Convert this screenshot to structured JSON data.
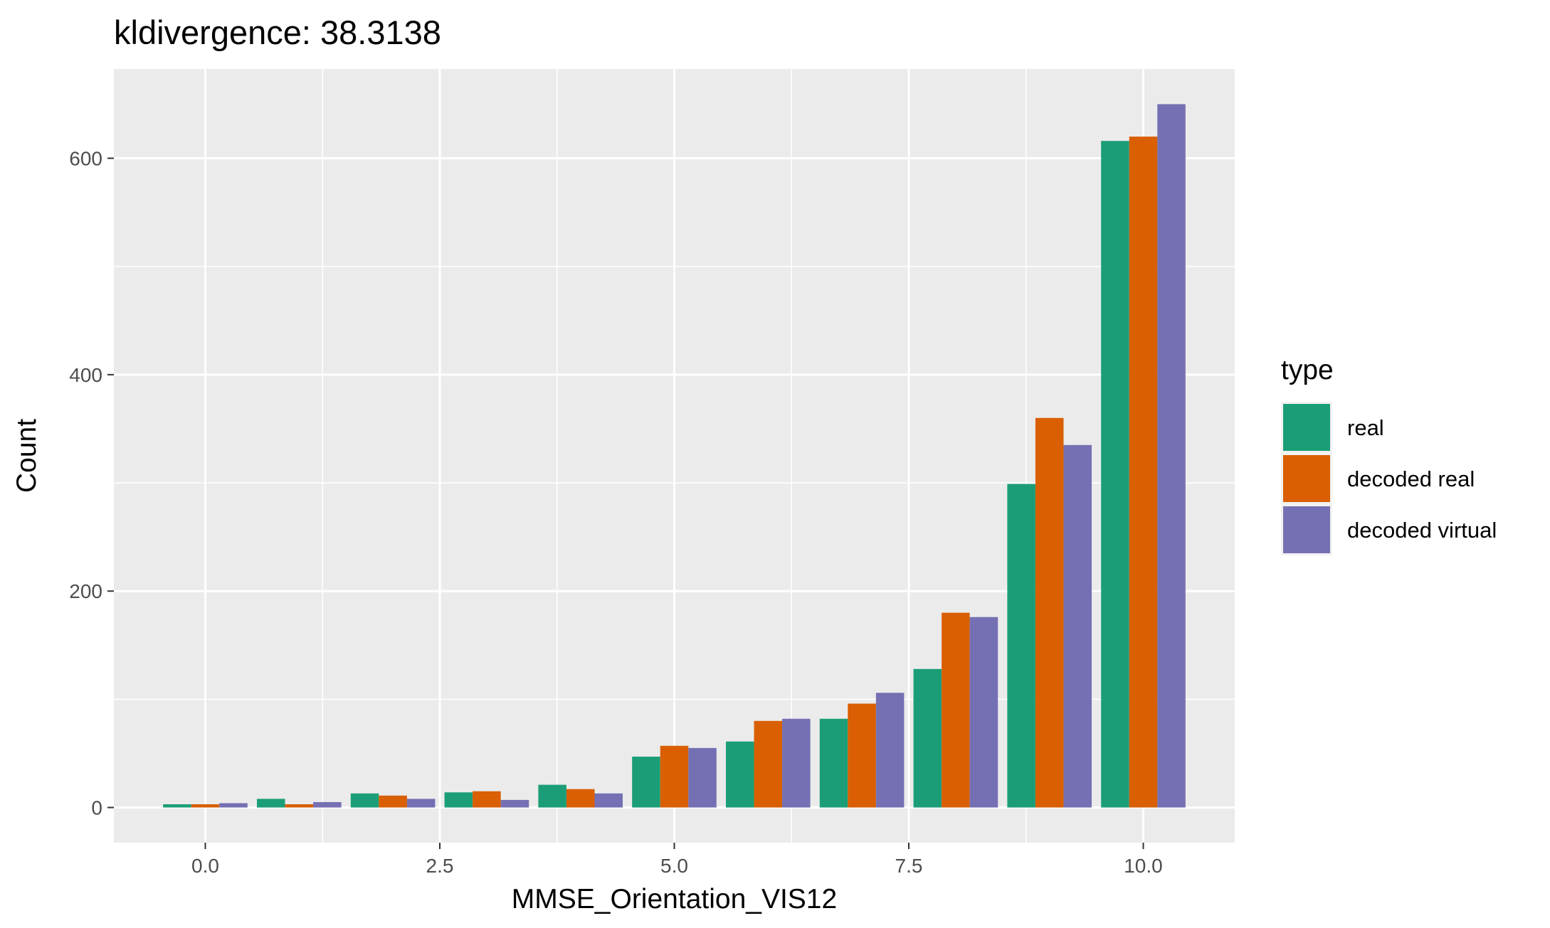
{
  "chart_data": {
    "type": "bar",
    "title": "kldivergence: 38.3138",
    "xlabel": "MMSE_Orientation_VIS12",
    "ylabel": "Count",
    "x": [
      0,
      1,
      2,
      3,
      4,
      5,
      6,
      7,
      8,
      9,
      10
    ],
    "x_ticks": [
      0,
      2.5,
      5,
      7.5,
      10
    ],
    "x_tick_labels": [
      "0.0",
      "2.5",
      "5.0",
      "7.5",
      "10.0"
    ],
    "y_ticks": [
      0,
      200,
      400,
      600
    ],
    "y_tick_labels": [
      "0",
      "200",
      "400",
      "600"
    ],
    "xlim": [
      -0.975,
      10.975
    ],
    "ylim": [
      -32.5,
      682.5
    ],
    "grid": true,
    "legend": {
      "title": "type",
      "position": "right"
    },
    "series": [
      {
        "name": "real",
        "color": "#1B9E77",
        "values": [
          3,
          8,
          13,
          14,
          21,
          47,
          61,
          82,
          128,
          299,
          616
        ]
      },
      {
        "name": "decoded real",
        "color": "#D95F02",
        "values": [
          3,
          3,
          11,
          15,
          17,
          57,
          80,
          96,
          180,
          360,
          620
        ]
      },
      {
        "name": "decoded virtual",
        "color": "#7570B3",
        "values": [
          4,
          5,
          8,
          7,
          13,
          55,
          82,
          106,
          176,
          335,
          650
        ]
      }
    ]
  }
}
